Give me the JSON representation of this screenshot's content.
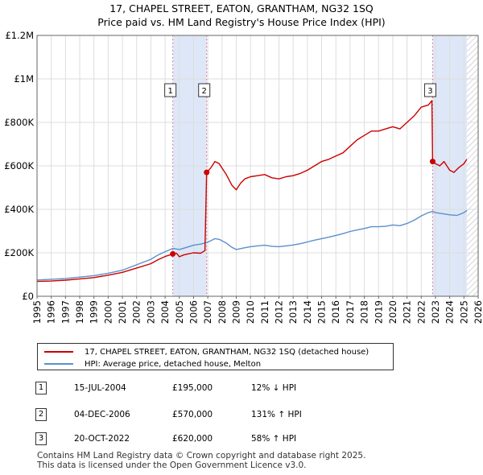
{
  "title": {
    "line1": "17, CHAPEL STREET, EATON, GRANTHAM, NG32 1SQ",
    "line2": "Price paid vs. HM Land Registry's House Price Index (HPI)"
  },
  "colors": {
    "property": "#cc0000",
    "hpi": "#5b8fcc",
    "shade": "#dde7f7",
    "grid": "#dddddd",
    "marker_line": "#e06070"
  },
  "chart_data": {
    "type": "line",
    "title": "17, CHAPEL STREET, EATON, GRANTHAM, NG32 1SQ — Price paid vs. HM Land Registry's House Price Index (HPI)",
    "xlim": [
      1995,
      2026
    ],
    "ylim": [
      0,
      1200000
    ],
    "x_ticks": [
      1995,
      1996,
      1997,
      1998,
      1999,
      2000,
      2001,
      2002,
      2003,
      2004,
      2005,
      2006,
      2007,
      2008,
      2009,
      2010,
      2011,
      2012,
      2013,
      2014,
      2015,
      2016,
      2017,
      2018,
      2019,
      2020,
      2021,
      2022,
      2023,
      2024,
      2025,
      2026
    ],
    "y_ticks": [
      {
        "value": 0,
        "label": "£0"
      },
      {
        "value": 200000,
        "label": "£200K"
      },
      {
        "value": 400000,
        "label": "£400K"
      },
      {
        "value": 600000,
        "label": "£600K"
      },
      {
        "value": 800000,
        "label": "£800K"
      },
      {
        "value": 1000000,
        "label": "£1M"
      },
      {
        "value": 1200000,
        "label": "£1.2M"
      }
    ],
    "grid": true,
    "series": [
      {
        "name": "17, CHAPEL STREET, EATON, GRANTHAM, NG32 1SQ (detached house)",
        "x": [
          1995.0,
          1996.0,
          1997.0,
          1998.0,
          1999.0,
          2000.0,
          2001.0,
          2002.0,
          2003.0,
          2003.5,
          2004.0,
          2004.54,
          2004.8,
          2005.0,
          2005.3,
          2005.6,
          2006.0,
          2006.5,
          2006.8,
          2006.92,
          2007.0,
          2007.2,
          2007.5,
          2007.8,
          2008.0,
          2008.3,
          2008.7,
          2009.0,
          2009.3,
          2009.6,
          2010.0,
          2010.5,
          2011.0,
          2011.5,
          2012.0,
          2012.5,
          2013.0,
          2013.5,
          2014.0,
          2014.5,
          2015.0,
          2015.5,
          2016.0,
          2016.5,
          2017.0,
          2017.5,
          2018.0,
          2018.5,
          2019.0,
          2019.5,
          2020.0,
          2020.5,
          2021.0,
          2021.5,
          2022.0,
          2022.5,
          2022.75,
          2022.8,
          2023.0,
          2023.3,
          2023.6,
          2024.0,
          2024.3,
          2024.6,
          2025.0,
          2025.2
        ],
        "values": [
          68000,
          70000,
          74000,
          80000,
          86000,
          97000,
          110000,
          130000,
          150000,
          168000,
          183000,
          195000,
          198000,
          182000,
          190000,
          195000,
          200000,
          198000,
          210000,
          570000,
          575000,
          590000,
          620000,
          610000,
          590000,
          560000,
          510000,
          490000,
          520000,
          540000,
          550000,
          555000,
          560000,
          545000,
          540000,
          550000,
          555000,
          565000,
          580000,
          600000,
          620000,
          630000,
          645000,
          660000,
          690000,
          720000,
          740000,
          760000,
          760000,
          770000,
          780000,
          770000,
          800000,
          830000,
          870000,
          880000,
          900000,
          620000,
          610000,
          600000,
          620000,
          580000,
          570000,
          590000,
          610000,
          630000
        ]
      },
      {
        "name": "HPI: Average price, detached house, Melton",
        "x": [
          1995.0,
          1996.0,
          1997.0,
          1998.0,
          1999.0,
          2000.0,
          2001.0,
          2002.0,
          2003.0,
          2003.5,
          2004.0,
          2004.54,
          2005.0,
          2005.5,
          2006.0,
          2006.5,
          2006.92,
          2007.2,
          2007.5,
          2007.8,
          2008.0,
          2008.3,
          2008.7,
          2009.0,
          2009.5,
          2010.0,
          2010.5,
          2011.0,
          2011.5,
          2012.0,
          2012.5,
          2013.0,
          2013.5,
          2014.0,
          2014.5,
          2015.0,
          2015.5,
          2016.0,
          2016.5,
          2017.0,
          2017.5,
          2018.0,
          2018.5,
          2019.0,
          2019.5,
          2020.0,
          2020.5,
          2021.0,
          2021.5,
          2022.0,
          2022.5,
          2022.8,
          2023.0,
          2023.5,
          2024.0,
          2024.5,
          2025.0,
          2025.2
        ],
        "values": [
          75000,
          78000,
          82000,
          88000,
          95000,
          106000,
          120000,
          145000,
          170000,
          190000,
          205000,
          220000,
          215000,
          225000,
          235000,
          240000,
          247000,
          255000,
          265000,
          262000,
          255000,
          245000,
          225000,
          215000,
          222000,
          228000,
          232000,
          235000,
          230000,
          228000,
          232000,
          236000,
          242000,
          250000,
          258000,
          265000,
          272000,
          280000,
          288000,
          298000,
          305000,
          312000,
          320000,
          320000,
          322000,
          328000,
          325000,
          335000,
          350000,
          370000,
          385000,
          390000,
          385000,
          380000,
          375000,
          372000,
          385000,
          395000
        ]
      }
    ],
    "shaded_regions": [
      [
        2004.54,
        2006.92
      ],
      [
        2022.8,
        2026
      ]
    ],
    "hatched_region": [
      2025.2,
      2026
    ],
    "sales": [
      {
        "label": "1",
        "x": 2004.54,
        "price": 195000
      },
      {
        "label": "2",
        "x": 2006.92,
        "price": 570000
      },
      {
        "label": "3",
        "x": 2022.8,
        "price": 620000
      }
    ]
  },
  "legend": {
    "property_label": "17, CHAPEL STREET, EATON, GRANTHAM, NG32 1SQ (detached house)",
    "hpi_label": "HPI: Average price, detached house, Melton"
  },
  "transactions": [
    {
      "num": "1",
      "date": "15-JUL-2004",
      "price": "£195,000",
      "hpi": "12% ↓ HPI"
    },
    {
      "num": "2",
      "date": "04-DEC-2006",
      "price": "£570,000",
      "hpi": "131% ↑ HPI"
    },
    {
      "num": "3",
      "date": "20-OCT-2022",
      "price": "£620,000",
      "hpi": "58% ↑ HPI"
    }
  ],
  "footer": {
    "line1": "Contains HM Land Registry data © Crown copyright and database right 2025.",
    "line2": "This data is licensed under the Open Government Licence v3.0."
  }
}
